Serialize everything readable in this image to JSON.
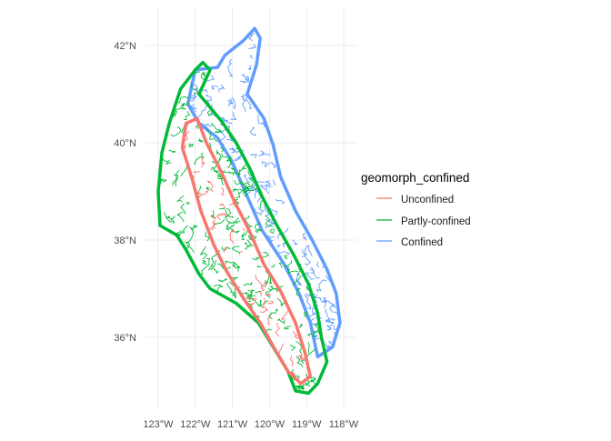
{
  "chart_data": {
    "type": "line",
    "title": "",
    "xlabel": "",
    "ylabel": "",
    "x_ticks": [
      "123°W",
      "122°W",
      "121°W",
      "120°W",
      "119°W",
      "118°W"
    ],
    "y_ticks": [
      "42°N",
      "40°N",
      "38°N",
      "36°N"
    ],
    "x_tick_values": [
      -123,
      -122,
      -121,
      -120,
      -119,
      -118
    ],
    "y_tick_values": [
      42,
      40,
      38,
      36
    ],
    "xlim": [
      -123.1,
      -117.7
    ],
    "ylim": [
      34.65,
      42.45
    ],
    "grid": true,
    "legend": {
      "title": "geomorph_confined",
      "placement": "right",
      "entries": [
        {
          "label": "Unconfined",
          "color": "#F8766D"
        },
        {
          "label": "Partly-confined",
          "color": "#00BA38"
        },
        {
          "label": "Confined",
          "color": "#619CFF"
        }
      ]
    },
    "series": [
      {
        "name": "Confined",
        "color": "#619CFF",
        "polygon": [
          [
            -122.0,
            41.5
          ],
          [
            -121.4,
            41.55
          ],
          [
            -121.2,
            41.8
          ],
          [
            -120.7,
            42.1
          ],
          [
            -120.4,
            42.35
          ],
          [
            -120.25,
            42.15
          ],
          [
            -120.35,
            41.6
          ],
          [
            -120.6,
            41.0
          ],
          [
            -120.15,
            40.5
          ],
          [
            -119.9,
            39.95
          ],
          [
            -119.7,
            39.3
          ],
          [
            -119.3,
            38.6
          ],
          [
            -118.85,
            38.0
          ],
          [
            -118.45,
            37.4
          ],
          [
            -118.2,
            36.9
          ],
          [
            -118.1,
            36.3
          ],
          [
            -118.3,
            35.8
          ],
          [
            -118.7,
            35.6
          ],
          [
            -118.9,
            36.3
          ],
          [
            -119.2,
            36.9
          ],
          [
            -119.6,
            37.5
          ],
          [
            -120.2,
            38.2
          ],
          [
            -120.6,
            38.9
          ],
          [
            -121.0,
            39.6
          ],
          [
            -121.4,
            40.1
          ],
          [
            -121.9,
            40.4
          ],
          [
            -122.2,
            40.8
          ]
        ]
      },
      {
        "name": "Partly-confined",
        "color": "#00BA38",
        "polygon": [
          [
            -122.4,
            41.1
          ],
          [
            -122.0,
            41.5
          ],
          [
            -121.8,
            41.65
          ],
          [
            -121.6,
            41.5
          ],
          [
            -121.9,
            41.0
          ],
          [
            -121.3,
            40.45
          ],
          [
            -120.9,
            40.0
          ],
          [
            -120.55,
            39.5
          ],
          [
            -120.2,
            38.9
          ],
          [
            -119.8,
            38.3
          ],
          [
            -119.35,
            37.7
          ],
          [
            -118.95,
            37.1
          ],
          [
            -118.7,
            36.5
          ],
          [
            -118.6,
            36.0
          ],
          [
            -118.45,
            35.5
          ],
          [
            -118.7,
            35.05
          ],
          [
            -118.95,
            34.85
          ],
          [
            -119.3,
            34.9
          ],
          [
            -119.5,
            35.3
          ],
          [
            -119.9,
            35.8
          ],
          [
            -120.3,
            36.3
          ],
          [
            -120.9,
            36.7
          ],
          [
            -121.6,
            37.0
          ],
          [
            -121.9,
            37.3
          ],
          [
            -122.25,
            37.8
          ],
          [
            -122.5,
            38.1
          ],
          [
            -122.95,
            38.3
          ],
          [
            -123.0,
            39.0
          ],
          [
            -122.9,
            39.8
          ],
          [
            -122.7,
            40.4
          ]
        ]
      },
      {
        "name": "Unconfined",
        "color": "#F8766D",
        "polygon": [
          [
            -122.25,
            40.4
          ],
          [
            -121.95,
            40.5
          ],
          [
            -121.7,
            40.0
          ],
          [
            -121.3,
            39.4
          ],
          [
            -120.95,
            38.8
          ],
          [
            -120.55,
            38.2
          ],
          [
            -120.15,
            37.5
          ],
          [
            -119.7,
            36.95
          ],
          [
            -119.3,
            36.3
          ],
          [
            -119.05,
            35.7
          ],
          [
            -118.9,
            35.2
          ],
          [
            -119.15,
            35.05
          ],
          [
            -119.5,
            35.3
          ],
          [
            -119.85,
            35.75
          ],
          [
            -120.25,
            36.3
          ],
          [
            -120.7,
            36.8
          ],
          [
            -121.15,
            37.35
          ],
          [
            -121.5,
            37.9
          ],
          [
            -121.85,
            38.6
          ],
          [
            -122.1,
            39.3
          ],
          [
            -122.35,
            39.9
          ]
        ]
      }
    ]
  }
}
